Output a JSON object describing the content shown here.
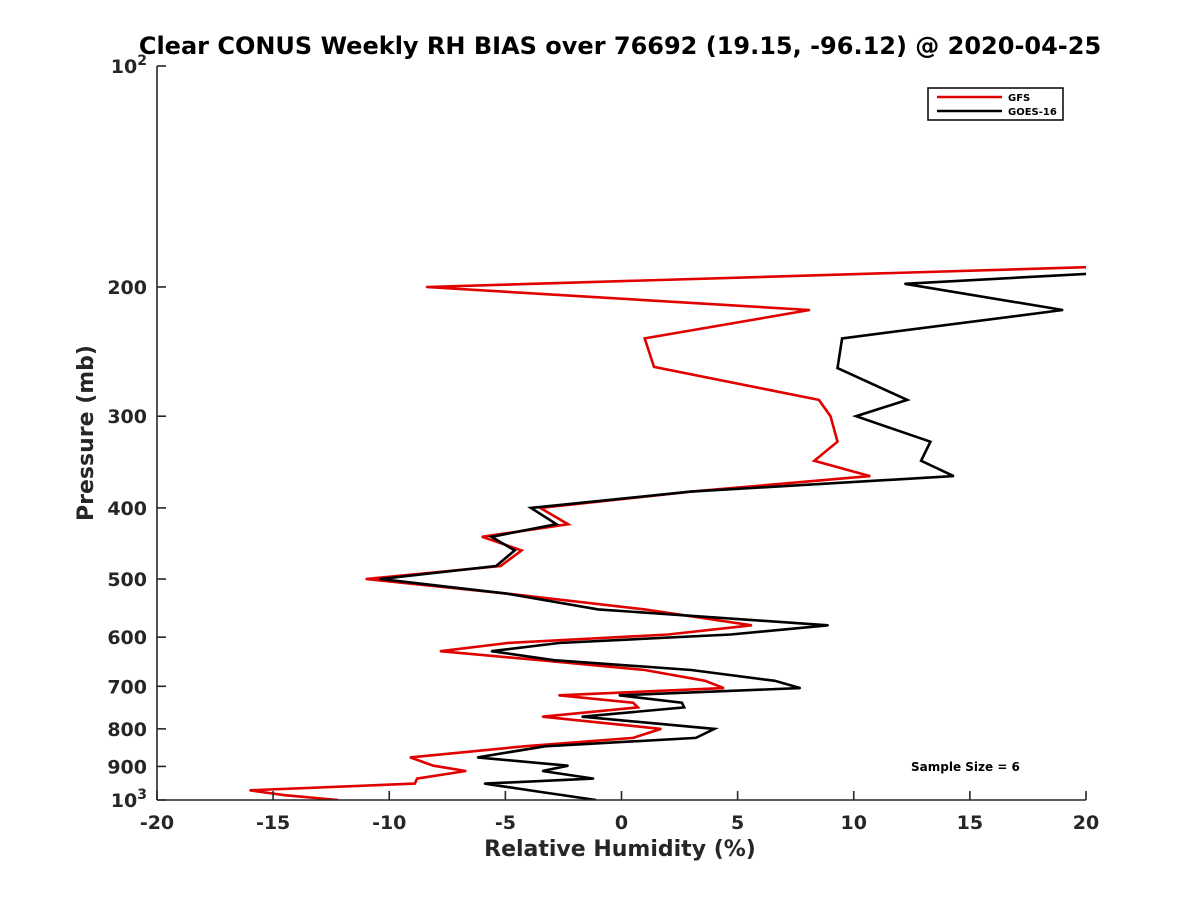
{
  "chart_data": {
    "type": "line",
    "title": "Clear CONUS Weekly RH BIAS over 76692 (19.15, -96.12) @ 2020-04-25",
    "xlabel": "Relative Humidity (%)",
    "ylabel": "Pressure (mb)",
    "xlim": [
      -20,
      20
    ],
    "ylim": [
      100,
      1000
    ],
    "yscale": "log",
    "yaxis_direction": "reversed",
    "grid": false,
    "legend_position": "top-right",
    "x_ticks": [
      "-20",
      "-15",
      "-10",
      "-5",
      "0",
      "5",
      "10",
      "15",
      "20"
    ],
    "x_tick_values": [
      -20,
      -15,
      -10,
      -5,
      0,
      5,
      10,
      15,
      20
    ],
    "y_ticks": [
      {
        "value": 100,
        "base": "10",
        "exp": "2"
      },
      {
        "value": 200,
        "label": "200"
      },
      {
        "value": 300,
        "label": "300"
      },
      {
        "value": 400,
        "label": "400"
      },
      {
        "value": 500,
        "label": "500"
      },
      {
        "value": 600,
        "label": "600"
      },
      {
        "value": 700,
        "label": "700"
      },
      {
        "value": 800,
        "label": "800"
      },
      {
        "value": 900,
        "label": "900"
      },
      {
        "value": 1000,
        "base": "10",
        "exp": "3"
      }
    ],
    "annotation": "Sample Size = 6",
    "series": [
      {
        "name": "GFS",
        "color": "#e00000",
        "points": [
          [
            20.0,
            188
          ],
          [
            -8.4,
            200
          ],
          [
            8.1,
            215
          ],
          [
            1.0,
            235
          ],
          [
            1.4,
            257
          ],
          [
            8.5,
            285
          ],
          [
            9.0,
            300
          ],
          [
            9.3,
            325
          ],
          [
            8.3,
            345
          ],
          [
            10.7,
            362
          ],
          [
            3.0,
            380
          ],
          [
            -3.5,
            400
          ],
          [
            -2.3,
            421
          ],
          [
            -6.0,
            438
          ],
          [
            -4.3,
            457
          ],
          [
            -5.2,
            480
          ],
          [
            -11.0,
            500
          ],
          [
            -5.0,
            523
          ],
          [
            1.0,
            550
          ],
          [
            5.6,
            578
          ],
          [
            2.0,
            595
          ],
          [
            -4.9,
            611
          ],
          [
            -7.8,
            627
          ],
          [
            -3.5,
            645
          ],
          [
            1.0,
            665
          ],
          [
            3.6,
            688
          ],
          [
            4.4,
            704
          ],
          [
            -2.7,
            720
          ],
          [
            0.5,
            737
          ],
          [
            0.7,
            748
          ],
          [
            -3.4,
            770
          ],
          [
            1.7,
            800
          ],
          [
            0.5,
            823
          ],
          [
            -4.2,
            845
          ],
          [
            -9.1,
            875
          ],
          [
            -8.1,
            898
          ],
          [
            -6.7,
            913
          ],
          [
            -8.8,
            935
          ],
          [
            -8.9,
            950
          ],
          [
            -16.0,
            970
          ],
          [
            -14.5,
            985
          ],
          [
            -12.2,
            1000
          ]
        ]
      },
      {
        "name": "GOES-16",
        "color": "#000000",
        "points": [
          [
            20.0,
            192
          ],
          [
            12.2,
            198
          ],
          [
            19.0,
            215
          ],
          [
            9.5,
            235
          ],
          [
            9.3,
            258
          ],
          [
            12.3,
            285
          ],
          [
            10.1,
            300
          ],
          [
            13.3,
            325
          ],
          [
            12.9,
            345
          ],
          [
            14.3,
            362
          ],
          [
            3.0,
            380
          ],
          [
            -3.9,
            400
          ],
          [
            -2.8,
            421
          ],
          [
            -5.6,
            438
          ],
          [
            -4.6,
            457
          ],
          [
            -5.4,
            480
          ],
          [
            -10.4,
            500
          ],
          [
            -5.0,
            523
          ],
          [
            -1.0,
            550
          ],
          [
            8.9,
            578
          ],
          [
            4.7,
            595
          ],
          [
            -2.7,
            611
          ],
          [
            -5.6,
            627
          ],
          [
            -2.9,
            645
          ],
          [
            3.0,
            665
          ],
          [
            6.6,
            688
          ],
          [
            7.7,
            704
          ],
          [
            -0.1,
            720
          ],
          [
            2.6,
            737
          ],
          [
            2.7,
            748
          ],
          [
            -1.7,
            770
          ],
          [
            4.0,
            800
          ],
          [
            3.2,
            823
          ],
          [
            -3.3,
            845
          ],
          [
            -6.2,
            875
          ],
          [
            -2.3,
            898
          ],
          [
            -3.4,
            913
          ],
          [
            -1.2,
            935
          ],
          [
            -5.9,
            950
          ],
          [
            -3.5,
            975
          ],
          [
            -1.1,
            1000
          ]
        ]
      }
    ]
  }
}
